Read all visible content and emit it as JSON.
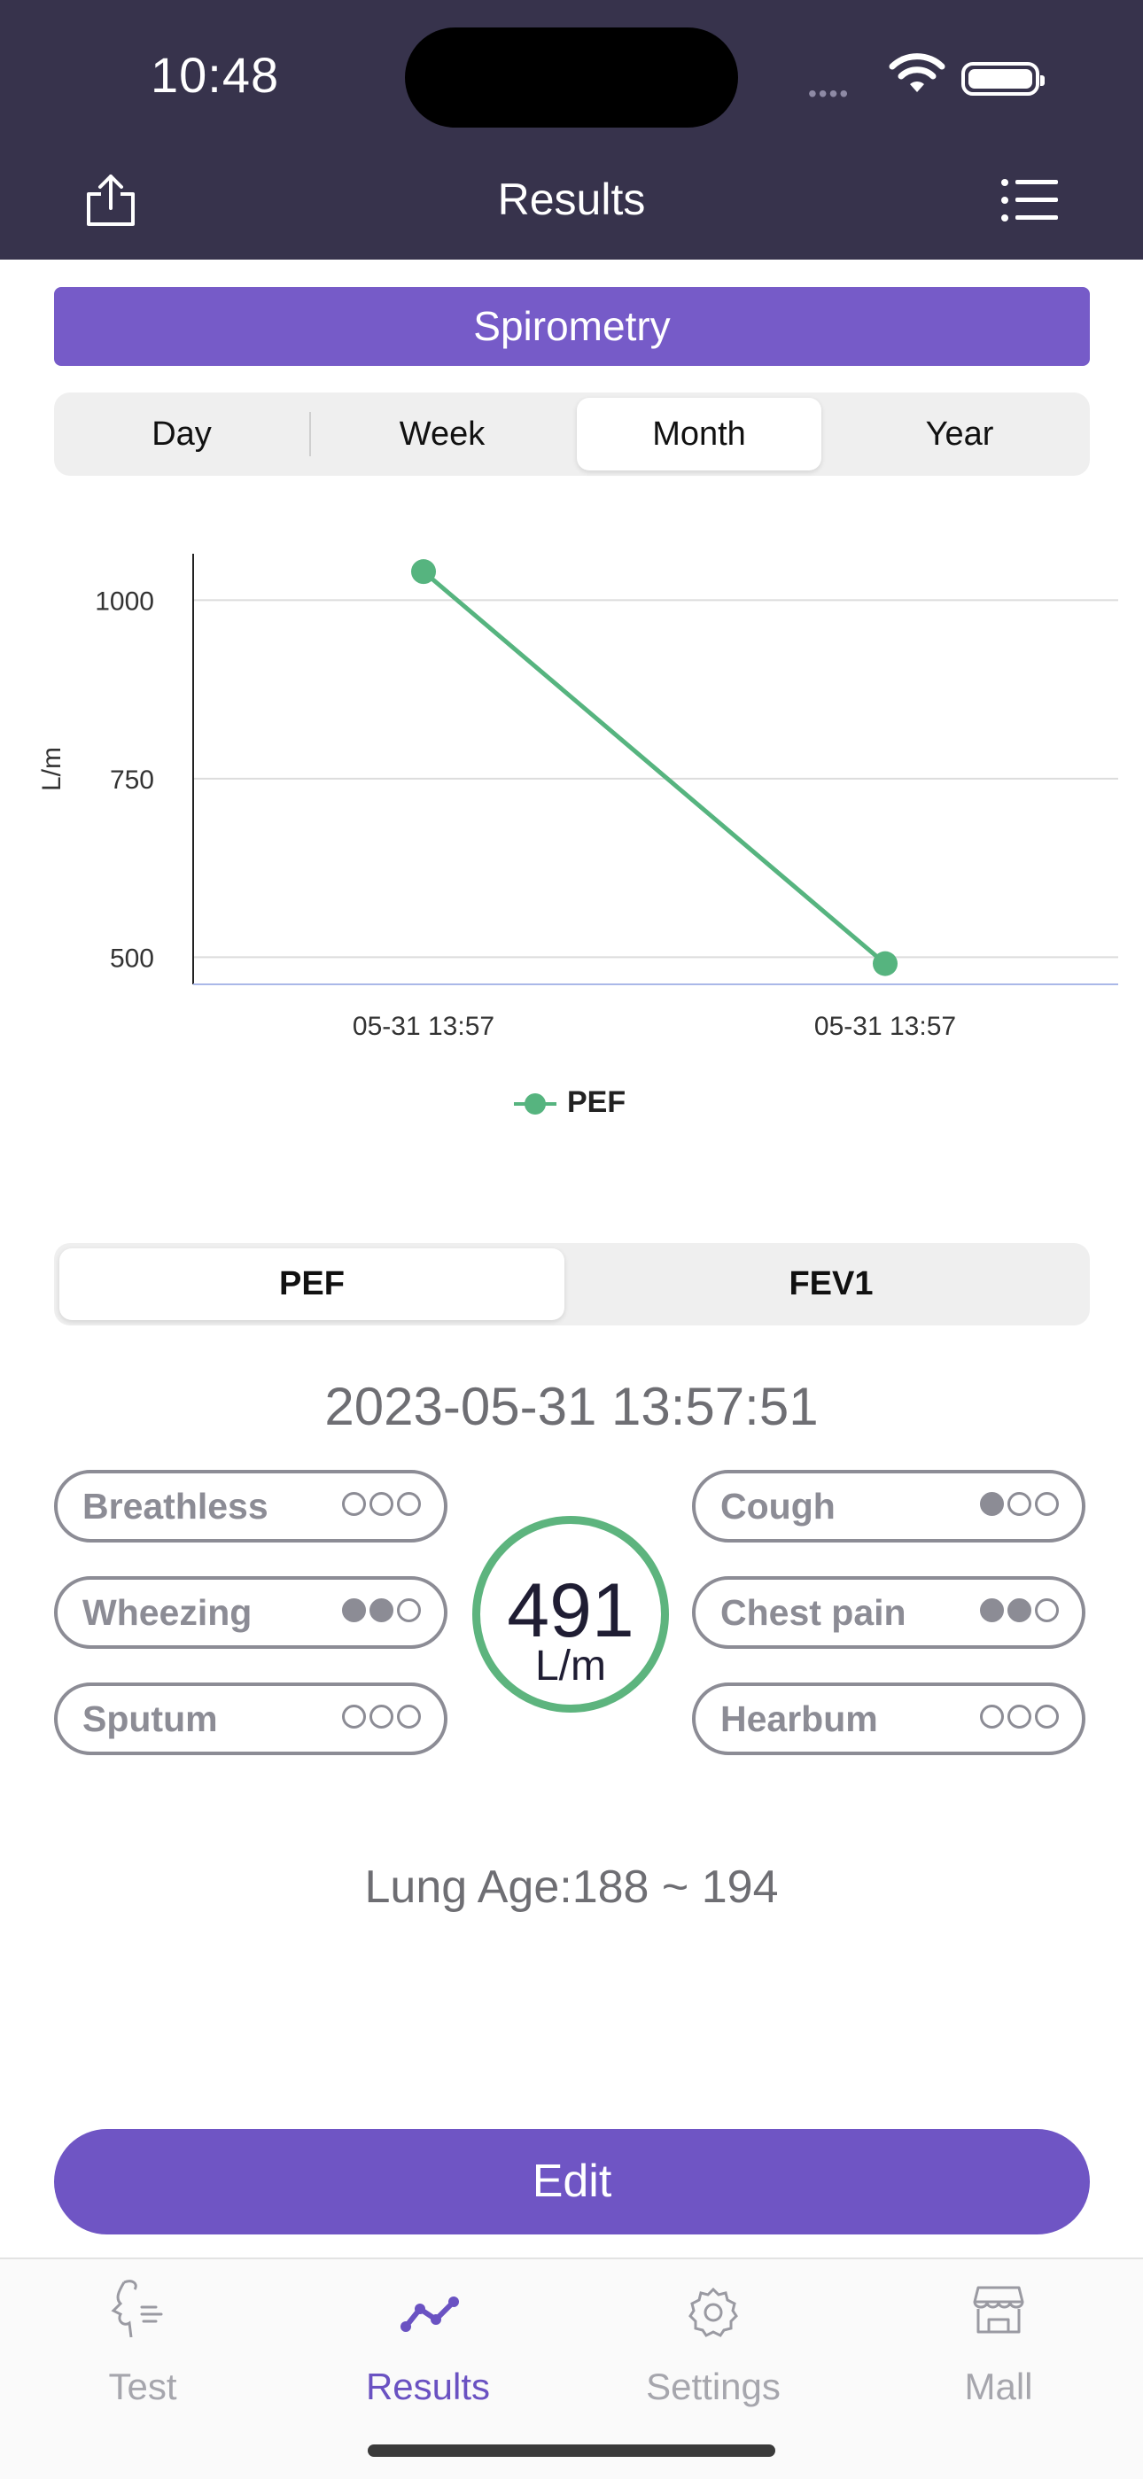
{
  "status_bar": {
    "time": "10:48"
  },
  "header": {
    "title": "Results"
  },
  "banner": {
    "label": "Spirometry"
  },
  "period_tabs": [
    {
      "label": "Day",
      "selected": false
    },
    {
      "label": "Week",
      "selected": false
    },
    {
      "label": "Month",
      "selected": true
    },
    {
      "label": "Year",
      "selected": false
    }
  ],
  "chart_data": {
    "type": "line",
    "ylabel": "L/m",
    "y_ticks": [
      "1000",
      "750",
      "500"
    ],
    "ylim": [
      462,
      1065
    ],
    "categories": [
      "05-31 13:57",
      "05-31 13:57"
    ],
    "series": [
      {
        "name": "PEF",
        "values": [
          1040,
          491
        ],
        "color": "#56b47f"
      }
    ],
    "legend": "bottom-center",
    "grid": true
  },
  "metric_tabs": [
    {
      "label": "PEF",
      "selected": true
    },
    {
      "label": "FEV1",
      "selected": false
    }
  ],
  "record": {
    "datetime": "2023-05-31 13:57:51",
    "value": "491",
    "unit": "L/m",
    "lung_age": "Lung Age:188 ~ 194"
  },
  "symptoms_left": [
    {
      "label": "Breathless",
      "level": 0
    },
    {
      "label": "Wheezing",
      "level": 2
    },
    {
      "label": "Sputum",
      "level": 0
    }
  ],
  "symptoms_right": [
    {
      "label": "Cough",
      "level": 1
    },
    {
      "label": "Chest pain",
      "level": 2
    },
    {
      "label": "Hearbum",
      "level": 0
    }
  ],
  "edit_button": {
    "label": "Edit"
  },
  "tabbar": [
    {
      "label": "Test",
      "icon": "breath-icon",
      "active": false
    },
    {
      "label": "Results",
      "icon": "trend-icon",
      "active": true
    },
    {
      "label": "Settings",
      "icon": "gear-icon",
      "active": false
    },
    {
      "label": "Mall",
      "icon": "store-icon",
      "active": false
    }
  ],
  "colors": {
    "header": "#37334c",
    "accent": "#765bc8",
    "series": "#56b47f"
  }
}
